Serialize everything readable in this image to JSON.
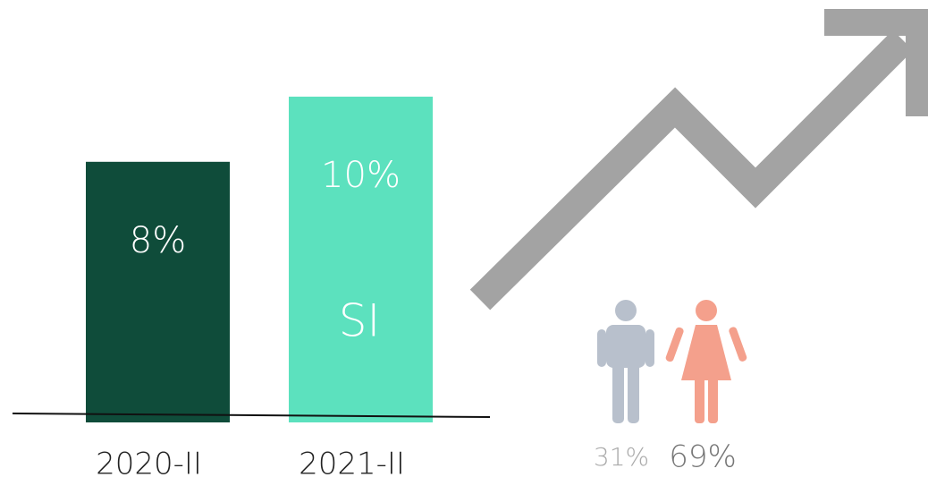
{
  "chart_data": {
    "type": "bar",
    "categories": [
      "2020-II",
      "2021-II"
    ],
    "values": [
      8,
      10
    ],
    "value_labels": [
      "8%",
      "10%"
    ],
    "colors": [
      "#0f4c3a",
      "#5ce1be"
    ],
    "annotation": "SI"
  },
  "gender": {
    "values": [
      31,
      69
    ],
    "value_labels": [
      "31%",
      "69%"
    ],
    "colors": [
      "#b8c0cc",
      "#f4a08c"
    ]
  }
}
